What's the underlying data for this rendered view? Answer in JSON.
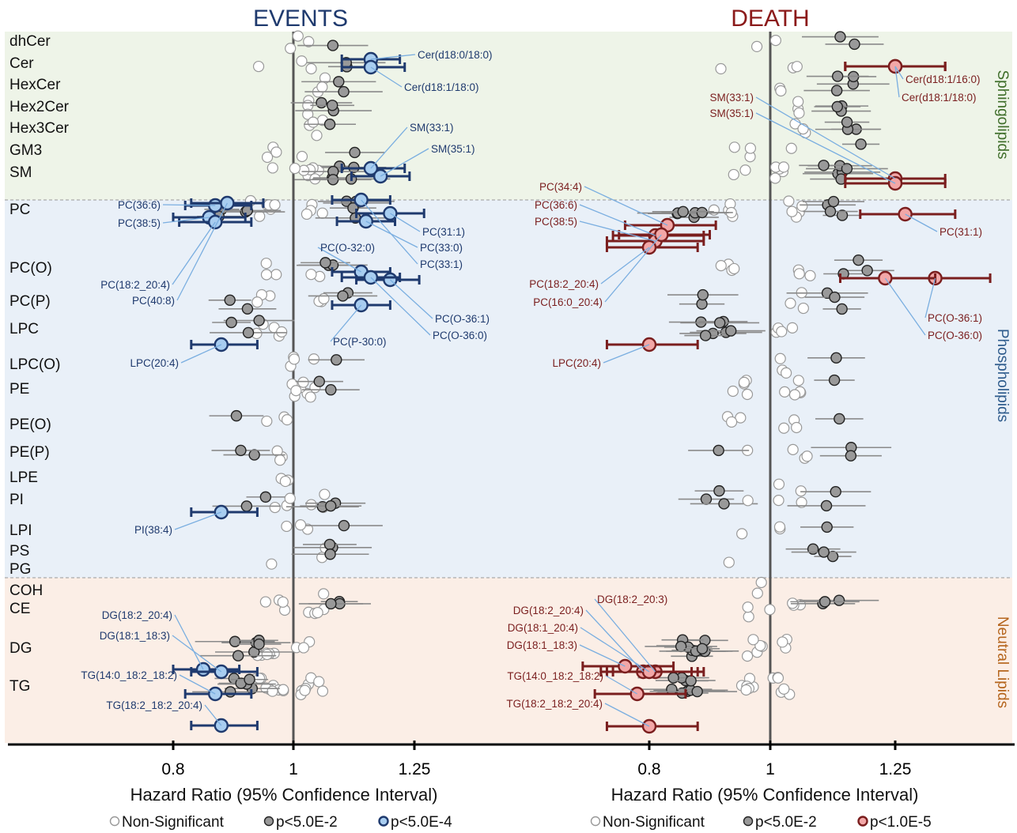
{
  "chart_data": [
    {
      "type": "scatter",
      "panel": "events",
      "title": "EVENTS",
      "xlabel": "Hazard Ratio (95% Confidence Interval)",
      "xticks": [
        0.8,
        1,
        1.25
      ],
      "xtick_labels": [
        "0.8",
        "1",
        "1.25"
      ],
      "xlim": [
        0.55,
        1.45
      ],
      "reference_line": 1,
      "highlighted": [
        {
          "label": "Cer(d18:0/18:0)",
          "class": "Cer",
          "hr": 1.16,
          "lo": 1.1,
          "hi": 1.22
        },
        {
          "label": "Cer(d18:1/18:0)",
          "class": "Cer",
          "hr": 1.16,
          "lo": 1.1,
          "hi": 1.23
        },
        {
          "label": "SM(33:1)",
          "class": "SM",
          "hr": 1.16,
          "lo": 1.1,
          "hi": 1.23
        },
        {
          "label": "SM(35:1)",
          "class": "SM",
          "hr": 1.18,
          "lo": 1.12,
          "hi": 1.24
        },
        {
          "label": "PC(36:6)",
          "class": "PC",
          "hr": 0.87,
          "lo": 0.82,
          "hi": 0.93
        },
        {
          "label": "PC(38:5)",
          "class": "PC",
          "hr": 0.86,
          "lo": 0.8,
          "hi": 0.92
        },
        {
          "label": "PC(18:2_20:4)",
          "class": "PC",
          "hr": 0.87,
          "lo": 0.81,
          "hi": 0.93
        },
        {
          "label": "PC(40:8)",
          "class": "PC",
          "hr": 0.89,
          "lo": 0.83,
          "hi": 0.95
        },
        {
          "label": "PC(31:1)",
          "class": "PC",
          "hr": 1.2,
          "lo": 1.13,
          "hi": 1.27
        },
        {
          "label": "PC(33:0)",
          "class": "PC",
          "hr": 1.15,
          "lo": 1.09,
          "hi": 1.21
        },
        {
          "label": "PC(33:1)",
          "class": "PC",
          "hr": 1.14,
          "lo": 1.08,
          "hi": 1.2
        },
        {
          "label": "PC(O-32:0)",
          "class": "PC(O)",
          "hr": 1.14,
          "lo": 1.08,
          "hi": 1.2
        },
        {
          "label": "PC(O-36:1)",
          "class": "PC(O)",
          "hr": 1.2,
          "lo": 1.13,
          "hi": 1.26
        },
        {
          "label": "PC(O-36:0)",
          "class": "PC(O)",
          "hr": 1.16,
          "lo": 1.1,
          "hi": 1.22
        },
        {
          "label": "PC(P-30:0)",
          "class": "PC(P)",
          "hr": 1.14,
          "lo": 1.08,
          "hi": 1.2
        },
        {
          "label": "LPC(20:4)",
          "class": "LPC",
          "hr": 0.88,
          "lo": 0.83,
          "hi": 0.94
        },
        {
          "label": "PI(38:4)",
          "class": "PI",
          "hr": 0.88,
          "lo": 0.83,
          "hi": 0.94
        },
        {
          "label": "DG(18:2_20:4)",
          "class": "DG",
          "hr": 0.85,
          "lo": 0.8,
          "hi": 0.91
        },
        {
          "label": "DG(18:1_18:3)",
          "class": "DG",
          "hr": 0.88,
          "lo": 0.83,
          "hi": 0.94
        },
        {
          "label": "TG(14:0_18:2_18:2)",
          "class": "TG",
          "hr": 0.87,
          "lo": 0.82,
          "hi": 0.93
        },
        {
          "label": "TG(18:2_18:2_20:4)",
          "class": "TG",
          "hr": 0.88,
          "lo": 0.83,
          "hi": 0.94
        }
      ]
    },
    {
      "type": "scatter",
      "panel": "death",
      "title": "DEATH",
      "xlabel": "Hazard Ratio (95% Confidence Interval)",
      "xticks": [
        0.8,
        1,
        1.25
      ],
      "xtick_labels": [
        "0.8",
        "1",
        "1.25"
      ],
      "xlim": [
        0.6,
        1.48
      ],
      "reference_line": 1,
      "highlighted": [
        {
          "label": "Cer(d18:1/16:0)",
          "class": "Cer",
          "hr": 1.25,
          "lo": 1.15,
          "hi": 1.35
        },
        {
          "label": "Cer(d18:1/18:0)",
          "class": "Cer",
          "hr": 1.25,
          "lo": 1.15,
          "hi": 1.35
        },
        {
          "label": "SM(33:1)",
          "class": "SM",
          "hr": 1.25,
          "lo": 1.15,
          "hi": 1.35
        },
        {
          "label": "SM(35:1)",
          "class": "SM",
          "hr": 1.25,
          "lo": 1.15,
          "hi": 1.35
        },
        {
          "label": "PC(34:4)",
          "class": "PC",
          "hr": 0.83,
          "lo": 0.76,
          "hi": 0.91
        },
        {
          "label": "PC(36:6)",
          "class": "PC",
          "hr": 0.81,
          "lo": 0.74,
          "hi": 0.89
        },
        {
          "label": "PC(38:5)",
          "class": "PC",
          "hr": 0.81,
          "lo": 0.73,
          "hi": 0.89
        },
        {
          "label": "PC(18:2_20:4)",
          "class": "PC",
          "hr": 0.8,
          "lo": 0.73,
          "hi": 0.88
        },
        {
          "label": "PC(16:0_20:4)",
          "class": "PC",
          "hr": 0.82,
          "lo": 0.75,
          "hi": 0.9
        },
        {
          "label": "PC(31:1)",
          "class": "PC",
          "hr": 1.27,
          "lo": 1.18,
          "hi": 1.37
        },
        {
          "label": "PC(O-36:1)",
          "class": "PC(O)",
          "hr": 1.33,
          "lo": 1.23,
          "hi": 1.44
        },
        {
          "label": "PC(O-36:0)",
          "class": "PC(O)",
          "hr": 1.23,
          "lo": 1.14,
          "hi": 1.33
        },
        {
          "label": "LPC(20:4)",
          "class": "LPC",
          "hr": 0.8,
          "lo": 0.73,
          "hi": 0.88
        },
        {
          "label": "DG(18:2_20:3)",
          "class": "DG",
          "hr": 0.81,
          "lo": 0.74,
          "hi": 0.89
        },
        {
          "label": "DG(18:2_20:4)",
          "class": "DG",
          "hr": 0.79,
          "lo": 0.72,
          "hi": 0.87
        },
        {
          "label": "DG(18:1_20:4)",
          "class": "DG",
          "hr": 0.8,
          "lo": 0.73,
          "hi": 0.88
        },
        {
          "label": "DG(18:1_18:3)",
          "class": "DG",
          "hr": 0.76,
          "lo": 0.69,
          "hi": 0.84
        },
        {
          "label": "TG(14:0_18:2_18:2)",
          "class": "TG",
          "hr": 0.78,
          "lo": 0.71,
          "hi": 0.86
        },
        {
          "label": "TG(18:2_18:2_20:4)",
          "class": "TG",
          "hr": 0.8,
          "lo": 0.73,
          "hi": 0.88
        }
      ]
    }
  ],
  "lipid_classes": [
    "dhCer",
    "Cer",
    "HexCer",
    "Hex2Cer",
    "Hex3Cer",
    "GM3",
    "SM",
    "PC",
    "PC(O)",
    "PC(P)",
    "LPC",
    "LPC(O)",
    "PE",
    "PE(O)",
    "PE(P)",
    "LPE",
    "PI",
    "LPI",
    "PS",
    "PG",
    "COH",
    "CE",
    "DG",
    "TG"
  ],
  "groups": [
    {
      "name": "Sphingolipids",
      "bg": "#eef4e8",
      "color": "#3f6e2a"
    },
    {
      "name": "Phospholipids",
      "bg": "#e9f0f8",
      "color": "#2e5b8c"
    },
    {
      "name": "Neutral Lipids",
      "bg": "#fbeee6",
      "color": "#b5651d"
    }
  ],
  "legend_events": [
    "Non-Significant",
    "p<5.0E-2",
    "p<5.0E-4"
  ],
  "legend_death": [
    "Non-Significant",
    "p<5.0E-2",
    "p<1.0E-5"
  ],
  "colors": {
    "events_title": "#1f3a6e",
    "death_title": "#8b1a1a",
    "events_sig": "#a8cdf0",
    "events_sig_edge": "#1f3a6e",
    "death_sig": "#f2a7a7",
    "death_sig_edge": "#7a1e1e",
    "grey_sig": "#999999",
    "callout": "#7aaee0"
  }
}
